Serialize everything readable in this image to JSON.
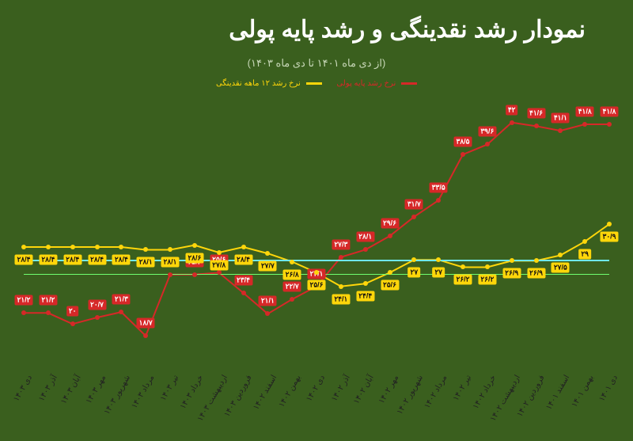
{
  "chart": {
    "type": "line",
    "title": "نمودار رشد نقدینگی و رشد پایه پولی",
    "subtitle": "(از دی ماه ۱۴۰۱ تا دی ماه ۱۴۰۳)",
    "background_color": "#3a5f1e",
    "title_color": "#ffffff",
    "title_fontsize": 30,
    "subtitle_color": "#c8d8b8",
    "subtitle_fontsize": 13,
    "xlabel_color": "#222222",
    "xlabel_fontsize": 10,
    "xlabel_rotation_deg": -60,
    "ylim": [
      15,
      45
    ],
    "hlines": [
      {
        "y": 27.0,
        "color": "#6fe8f0",
        "width": 2
      },
      {
        "y": 25.5,
        "color": "#6fff6f",
        "width": 1
      }
    ],
    "x_labels": [
      "دی ۱۴۰۱",
      "بهمن ۱۴۰۱",
      "اسفند ۱۴۰۱",
      "فروردین ۱۴۰۲",
      "اردیبهشت ۱۴۰۲",
      "خرداد ۱۴۰۲",
      "تیر ۱۴۰۲",
      "مرداد ۱۴۰۲",
      "شهریور ۱۴۰۲",
      "مهر ۱۴۰۲",
      "آبان ۱۴۰۲",
      "آذر ۱۴۰۲",
      "دی ۱۴۰۲",
      "بهمن ۱۴۰۲",
      "اسفند ۱۴۰۲",
      "فروردین ۱۴۰۳",
      "اردیبهشت ۱۴۰۳",
      "خرداد ۱۴۰۳",
      "تیر ۱۴۰۳",
      "مرداد ۱۴۰۳",
      "شهریور ۱۴۰۳",
      "مهر ۱۴۰۳",
      "آبان ۱۴۰۳",
      "آذر ۱۴۰۳",
      "دی ۱۴۰۳"
    ],
    "legend": [
      {
        "label": "نرخ رشد پایه پولی",
        "color": "#d62828"
      },
      {
        "label": "نرخ رشد ۱۲ ماهه نقدینگی",
        "color": "#ffd60a"
      }
    ],
    "series": [
      {
        "name": "monetary_base",
        "color": "#d62828",
        "label_bg": "#d62828",
        "label_fg": "#ffffff",
        "marker_color": "#d62828",
        "line_width": 2,
        "label_offset_y": -16,
        "values": [
          41.8,
          41.8,
          41.1,
          41.6,
          42.0,
          39.6,
          38.5,
          33.5,
          31.7,
          29.6,
          28.1,
          27.3,
          24.1,
          22.7,
          21.1,
          23.4,
          25.6,
          25.4,
          25.4,
          18.7,
          21.3,
          20.7,
          20.0,
          21.2,
          21.2
        ],
        "value_labels": [
          "۴۱/۸",
          "۴۱/۸",
          "۴۱/۱",
          "۴۱/۶",
          "۴۲",
          "۳۹/۶",
          "۳۸/۵",
          "۳۳/۵",
          "۳۱/۷",
          "۲۹/۶",
          "۲۸/۱",
          "۲۷/۳",
          "۲۴/۱",
          "۲۲/۷",
          "۲۱/۱",
          "۲۳/۴",
          "۲۵/۶",
          "۲۵/۴",
          "۲۵/۴",
          "۱۸/۷",
          "۲۱/۳",
          "۲۰/۷",
          "۲۰",
          "۲۱/۲",
          "۲۱/۲"
        ]
      },
      {
        "name": "liquidity",
        "color": "#ffd60a",
        "label_bg": "#ffd60a",
        "label_fg": "#111111",
        "marker_color": "#ffd60a",
        "line_width": 2,
        "label_offset_y": 16,
        "values": [
          30.9,
          29.0,
          27.5,
          26.9,
          26.9,
          26.2,
          26.2,
          27.0,
          27.0,
          25.6,
          24.4,
          24.1,
          25.6,
          26.8,
          27.7,
          28.4,
          27.8,
          28.6,
          28.1,
          28.1,
          28.4,
          28.4,
          28.4,
          28.4,
          28.4
        ],
        "value_labels": [
          "۳۰/۹",
          "۲۹",
          "۲۷/۵",
          "۲۶/۹",
          "۲۶/۹",
          "۲۶/۲",
          "۲۶/۲",
          "۲۷",
          "۲۷",
          "۲۵/۶",
          "۲۴/۴",
          "۲۴/۱",
          "۲۵/۶",
          "۲۶/۸",
          "۲۷/۷",
          "۲۸/۴",
          "۲۷/۸",
          "۲۸/۶",
          "۲۸/۱",
          "۲۸/۱",
          "۲۸/۴",
          "۲۸/۴",
          "۲۸/۴",
          "۲۸/۴",
          "۲۸/۴"
        ]
      }
    ]
  }
}
